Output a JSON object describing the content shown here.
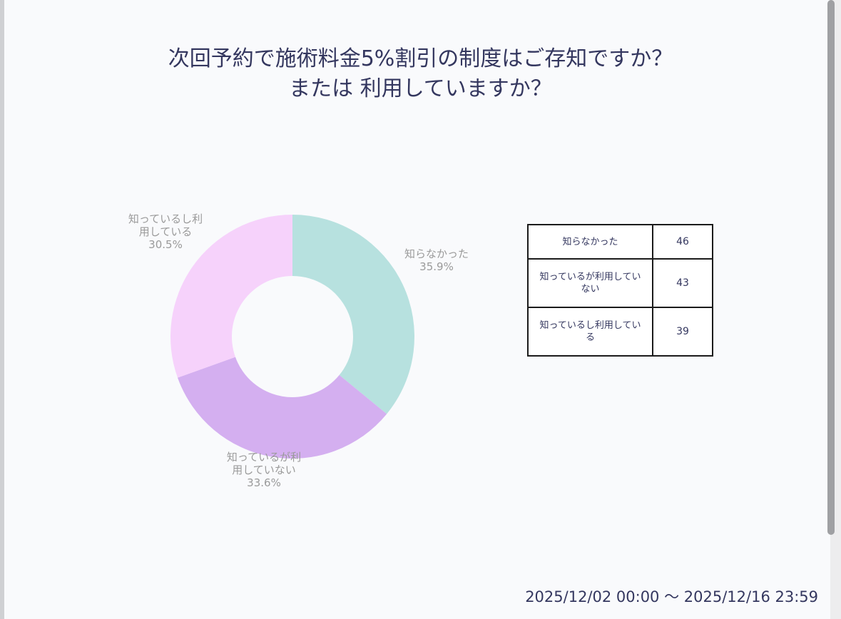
{
  "title_lines": [
    "次回予約で施術料金5%割引の制度はご存知ですか？",
    "または 利用していますか？"
  ],
  "period_label": "2025/12/02 00:00 〜 2025/12/16 23:59",
  "chart_data": {
    "type": "pie",
    "style": "donut",
    "title": "次回予約で施術料金5%割引の制度はご存知ですか？ または 利用していますか？",
    "legend": "right",
    "categories": [
      "知らなかった",
      "知っているが利用していない",
      "知っているし利用している"
    ],
    "values": [
      46,
      43,
      39
    ],
    "slices": [
      {
        "name": "知らなかった",
        "value": 46,
        "percent_label": "35.9%",
        "label_lines": [
          "知らなかった"
        ],
        "color": "#b7e1df"
      },
      {
        "name": "知っているが利用していない",
        "value": 43,
        "percent_label": "33.6%",
        "label_lines": [
          "知っているが利",
          "用していない"
        ],
        "color": "#d4aff0"
      },
      {
        "name": "知っているし利用している",
        "value": 39,
        "percent_label": "30.5%",
        "label_lines": [
          "知っているし利",
          "用している"
        ],
        "color": "#f6d2fb"
      }
    ]
  },
  "table": {
    "rows": [
      {
        "label": "知らなかった",
        "value": "46"
      },
      {
        "label": "知っているが利用していない",
        "value": "43"
      },
      {
        "label": "知っているし利用している",
        "value": "39"
      }
    ]
  }
}
